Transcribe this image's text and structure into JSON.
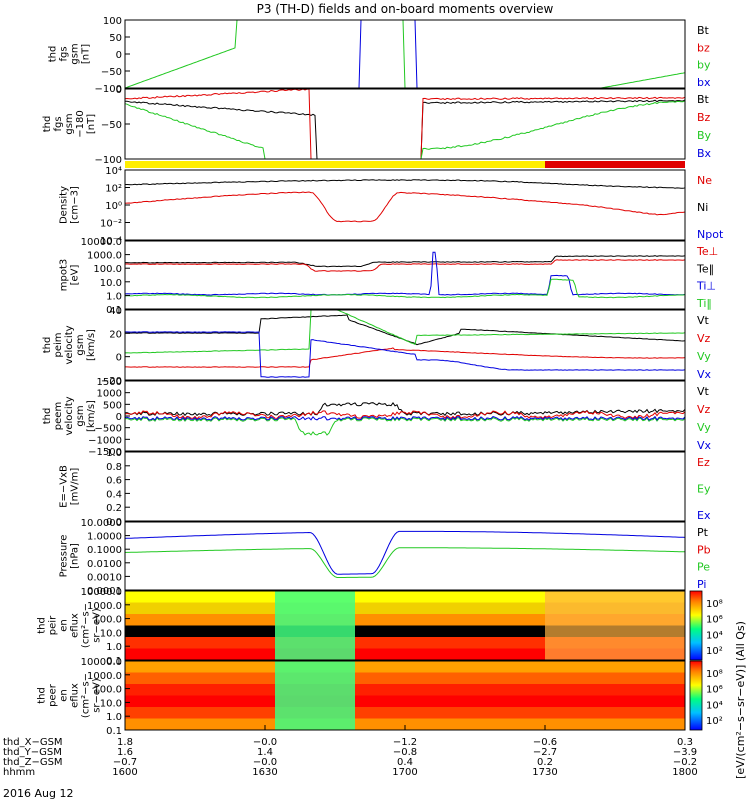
{
  "title": "P3 (TH-D) fields and on-board moments overview",
  "date_label": "2016 Aug 12",
  "colors": {
    "black": "#000000",
    "red": "#e00000",
    "green": "#22c822",
    "blue": "#0000e0",
    "yellow": "#ffee00",
    "barred": "#e00000"
  },
  "chart_data": [
    {
      "type": "line",
      "panel": "fgs_gsm",
      "ylabel_lines": [
        "thd",
        "fgs",
        "gsm",
        "[nT]"
      ],
      "ylim": [
        -100,
        100
      ],
      "yticks": [
        "100",
        "50",
        "0",
        "−50",
        "−100"
      ],
      "series": [
        {
          "name": "Bt",
          "color": "black"
        },
        {
          "name": "bz",
          "color": "red"
        },
        {
          "name": "by",
          "color": "green"
        },
        {
          "name": "bx",
          "color": "blue"
        }
      ]
    },
    {
      "type": "line",
      "panel": "fgs_gsm_zoom",
      "ylabel_lines": [
        "thd",
        "fgs",
        "gsm",
        "−180",
        "[nT]"
      ],
      "ylim": [
        -120,
        20
      ],
      "yticks": [
        "0",
        "−50",
        "−100"
      ],
      "series": [
        {
          "name": "Bt",
          "color": "black"
        },
        {
          "name": "Bz",
          "color": "red"
        },
        {
          "name": "By",
          "color": "green"
        },
        {
          "name": "Bx",
          "color": "blue"
        }
      ]
    },
    {
      "type": "line",
      "panel": "density",
      "ylabel_lines": [
        "Density",
        "[cm−3]"
      ],
      "yscale": "log",
      "ylim": [
        -4.5,
        4.5
      ],
      "yticks": [
        "10⁴",
        "10²",
        "10⁰",
        "10⁻²",
        "10⁻⁴"
      ],
      "series": [
        {
          "name": "Ne",
          "color": "red"
        },
        {
          "name": "Ni",
          "color": "black"
        },
        {
          "name": "Npot",
          "color": "blue"
        }
      ]
    },
    {
      "type": "line",
      "panel": "temperature",
      "ylabel_lines": [
        "mpot3",
        "[eV]"
      ],
      "yscale": "log",
      "ylim": [
        -1,
        4
      ],
      "yticks": [
        "10000.0",
        "1000.0",
        "100.0",
        "10.0",
        "1.0",
        "0.1"
      ],
      "series": [
        {
          "name": "Te⊥",
          "color": "red"
        },
        {
          "name": "Te‖",
          "color": "black"
        },
        {
          "name": "Ti⊥",
          "color": "blue"
        },
        {
          "name": "Ti‖",
          "color": "green"
        }
      ]
    },
    {
      "type": "line",
      "panel": "peim_velocity",
      "ylabel_lines": [
        "thd",
        "peim",
        "velocity",
        "gsm",
        "[km/s]"
      ],
      "ylim": [
        -25,
        45
      ],
      "yticks": [
        "40",
        "20",
        "0",
        "−20"
      ],
      "series": [
        {
          "name": "Vt",
          "color": "black"
        },
        {
          "name": "Vz",
          "color": "red"
        },
        {
          "name": "Vy",
          "color": "green"
        },
        {
          "name": "Vx",
          "color": "blue"
        }
      ]
    },
    {
      "type": "line",
      "panel": "peem_velocity",
      "ylabel_lines": [
        "thd",
        "peem",
        "velocity",
        "gsm",
        "[km/s]"
      ],
      "ylim": [
        -1500,
        1500
      ],
      "yticks": [
        "1500",
        "1000",
        "500",
        "0",
        "−500",
        "−1000",
        "−1500"
      ],
      "series": [
        {
          "name": "Vt",
          "color": "black"
        },
        {
          "name": "Vz",
          "color": "red"
        },
        {
          "name": "Vy",
          "color": "green"
        },
        {
          "name": "Vx",
          "color": "blue"
        }
      ]
    },
    {
      "type": "line",
      "panel": "e_field",
      "ylabel_lines": [
        "E=−VxB",
        "[mV/m]"
      ],
      "ylim": [
        0,
        1
      ],
      "yticks": [
        "1.0",
        "0.8",
        "0.6",
        "0.4",
        "0.2",
        "0.0"
      ],
      "series": [
        {
          "name": "Ez",
          "color": "red"
        },
        {
          "name": "Ey",
          "color": "green"
        },
        {
          "name": "Ex",
          "color": "blue"
        }
      ]
    },
    {
      "type": "line",
      "panel": "pressure",
      "ylabel_lines": [
        "Pressure",
        "[nPa]"
      ],
      "yscale": "log",
      "ylim": [
        -4.2,
        1.6
      ],
      "yticks": [
        "10.0000",
        "1.0000",
        "0.1000",
        "0.0100",
        "0.0010",
        "0.0001"
      ],
      "series": [
        {
          "name": "Pt",
          "color": "black"
        },
        {
          "name": "Pb",
          "color": "red"
        },
        {
          "name": "Pe",
          "color": "green"
        },
        {
          "name": "Pi",
          "color": "blue"
        }
      ]
    },
    {
      "type": "heatmap",
      "panel": "peir_spectrogram",
      "ylabel_lines": [
        "thd",
        "peir",
        "en",
        "eflux",
        "(cm²−s−",
        "sr−eV)"
      ],
      "yticks": [
        "10000.0",
        "1000.0",
        "100.0",
        "10.0",
        "1.0",
        "0.1"
      ],
      "cbar_ticks": [
        "10⁸",
        "10⁶",
        "10⁴",
        "10²"
      ]
    },
    {
      "type": "heatmap",
      "panel": "peer_spectrogram",
      "ylabel_lines": [
        "thd",
        "peer",
        "en",
        "eflux",
        "(cm²−s−",
        "sr−eV)"
      ],
      "yticks": [
        "10000.0",
        "1000.0",
        "100.0",
        "10.0",
        "1.0",
        "0.1"
      ],
      "cbar_ticks": [
        "10⁸",
        "10⁶",
        "10⁴",
        "10²"
      ]
    }
  ],
  "colorbar_label": "[eV/(cm²−s−sr−eV)] (All Qs)",
  "xaxis": {
    "row_labels": [
      "thd_X−GSM",
      "thd_Y−GSM",
      "thd_Z−GSM",
      "hhmm"
    ],
    "rows": [
      [
        "1.8",
        "−0.0",
        "−1.2",
        "−0.6",
        "0.3"
      ],
      [
        "1.6",
        "1.4",
        "−0.8",
        "−2.7",
        "−3.9"
      ],
      [
        "−0.7",
        "−0.0",
        "0.4",
        "0.2",
        "−0.2"
      ],
      [
        "1600",
        "1630",
        "1700",
        "1730",
        "1800"
      ]
    ]
  }
}
